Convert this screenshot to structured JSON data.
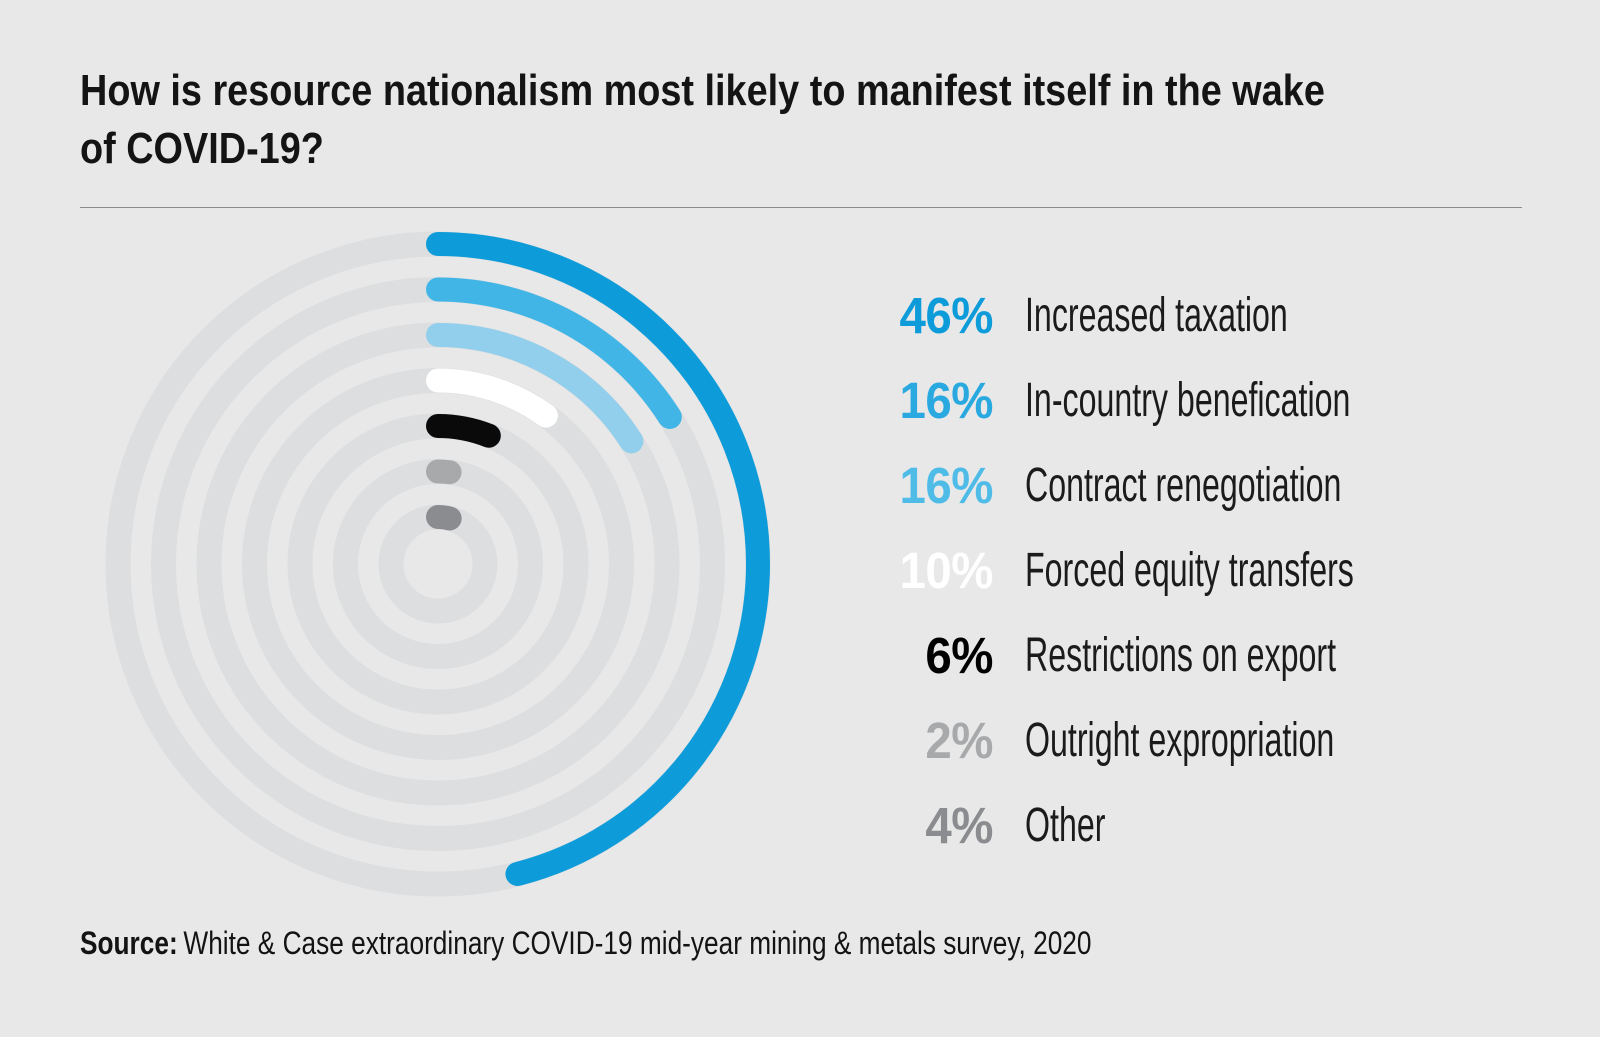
{
  "title_lines": [
    "How is resource nationalism most likely to manifest itself in the wake",
    "of COVID-19?"
  ],
  "legend": {
    "items": [
      {
        "pct": "46%",
        "label": "Increased taxation",
        "color": "#0D9CD9",
        "arc_color": "#0D9CD9"
      },
      {
        "pct": "16%",
        "label": "In-country benefication",
        "color": "#29A9DF",
        "arc_color": "#41B6E6"
      },
      {
        "pct": "16%",
        "label": "Contract renegotiation",
        "color": "#4FBCE8",
        "arc_color": "#92CFEC"
      },
      {
        "pct": "10%",
        "label": "Forced equity transfers",
        "color": "#FFFFFF",
        "arc_color": "#FFFFFF"
      },
      {
        "pct": "6%",
        "label": "Restrictions on export",
        "color": "#000000",
        "arc_color": "#0A0A0A"
      },
      {
        "pct": "2%",
        "label": "Outright expropriation",
        "color": "#A7A9AB",
        "arc_color": "#A7A9AB"
      },
      {
        "pct": "4%",
        "label": "Other",
        "color": "#8A8C8F",
        "arc_color": "#8A8C8F"
      }
    ]
  },
  "chart_data": {
    "type": "radial-bar",
    "title": "How is resource nationalism most likely to manifest itself in the wake of COVID-19?",
    "categories": [
      "Increased taxation",
      "In-country benefication",
      "Contract renegotiation",
      "Forced equity transfers",
      "Restrictions on export",
      "Outright expropriation",
      "Other"
    ],
    "values": [
      46,
      16,
      16,
      10,
      6,
      2,
      4
    ],
    "unit": "%",
    "value_range": [
      0,
      100
    ],
    "colors": [
      "#0D9CD9",
      "#41B6E6",
      "#92CFEC",
      "#FFFFFF",
      "#0A0A0A",
      "#A7A9AB",
      "#8A8C8F"
    ],
    "track_color": "#DCDEE0",
    "background_color": "#E8E8E8",
    "start_angle_deg": 0,
    "direction": "clockwise",
    "ring_order": "outermost ring = first category, rings step inward in legend order",
    "legend_position": "right",
    "grid": false
  },
  "source": {
    "prefix": "Source:",
    "text": "White & Case extraordinary COVID-19 mid-year mining & metals survey, 2020"
  }
}
